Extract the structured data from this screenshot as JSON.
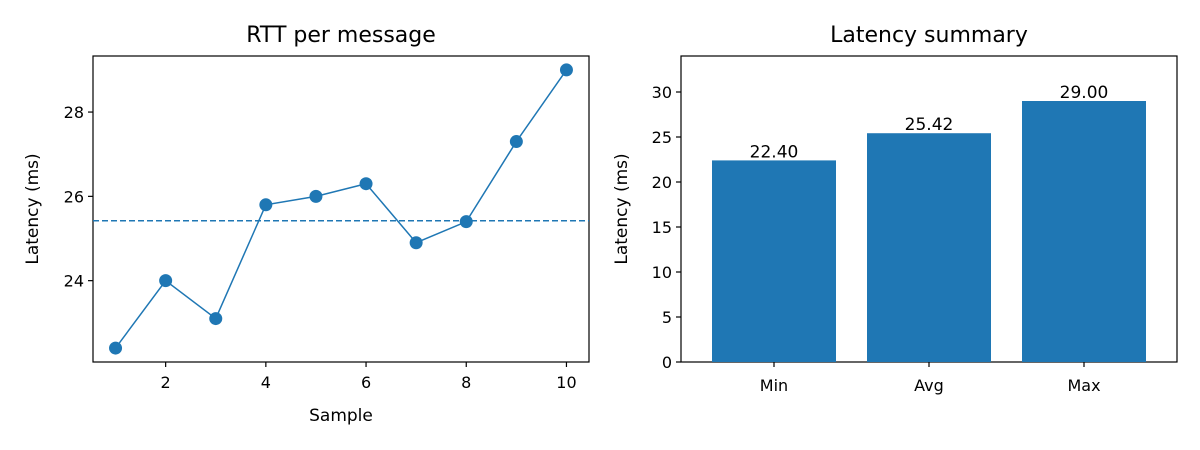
{
  "chart_data": [
    {
      "type": "line",
      "title": "RTT per message",
      "xlabel": "Sample",
      "ylabel": "Latency (ms)",
      "x": [
        1,
        2,
        3,
        4,
        5,
        6,
        7,
        8,
        9,
        10
      ],
      "series": [
        {
          "values": [
            22.4,
            24.0,
            23.1,
            25.8,
            26.0,
            26.3,
            24.9,
            25.4,
            27.3,
            29.0
          ],
          "color": "#1f77b4"
        }
      ],
      "reference_line": {
        "y": 25.42,
        "style": "dashed",
        "color": "#1f77b4"
      },
      "xticks": [
        "2",
        "4",
        "6",
        "8",
        "10"
      ],
      "yticks": [
        "24",
        "26",
        "28"
      ],
      "xlim": [
        0.55,
        10.45
      ],
      "ylim": [
        22.07,
        29.33
      ],
      "grid": false
    },
    {
      "type": "bar",
      "title": "Latency summary",
      "xlabel": "",
      "ylabel": "Latency (ms)",
      "categories": [
        "Min",
        "Avg",
        "Max"
      ],
      "values": [
        22.4,
        25.42,
        29.0
      ],
      "data_labels": [
        "22.40",
        "25.42",
        "29.00"
      ],
      "color": "#1f77b4",
      "yticks": [
        "0",
        "5",
        "10",
        "15",
        "20",
        "25",
        "30"
      ],
      "ylim": [
        0,
        34
      ],
      "grid": false
    }
  ]
}
